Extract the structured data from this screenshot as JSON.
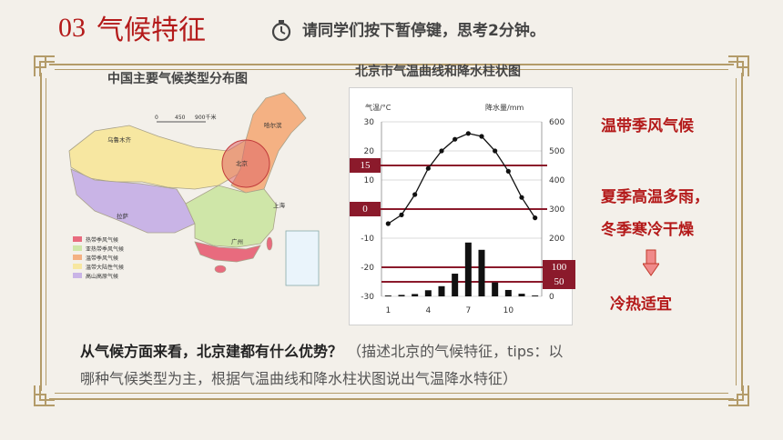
{
  "header": {
    "section_number": "03",
    "section_title": "气候特征",
    "timer_icon": "stopwatch-icon",
    "instruction": "请同学们按下暂停键，思考2分钟。"
  },
  "map": {
    "title": "中国主要气候类型分布图",
    "scale_labels": [
      "0",
      "450",
      "900千米"
    ],
    "city_labels": [
      "乌鲁木齐",
      "哈尔滨",
      "北京",
      "拉萨",
      "上海",
      "广州"
    ],
    "highlight_label": "北京",
    "legend": [
      {
        "label": "热带季风气候",
        "color": "#e86b7e"
      },
      {
        "label": "亚热带季风气候",
        "color": "#cfe6a8"
      },
      {
        "label": "温带季风气候",
        "color": "#f4b183"
      },
      {
        "label": "温带大陆性气候",
        "color": "#f7e7a1"
      },
      {
        "label": "高山高原气候",
        "color": "#c9b4e6"
      }
    ]
  },
  "chart": {
    "title": "北京市气温曲线和降水柱状图",
    "ylabel_left": "气温/°C",
    "ylabel_right": "降水量/mm",
    "left_ticks": [
      "30",
      "20",
      "10",
      "0",
      "-10",
      "-20",
      "-30"
    ],
    "right_ticks": [
      "600",
      "500",
      "400",
      "300",
      "200",
      "100",
      "0"
    ],
    "x_ticks": [
      "1",
      "4",
      "7",
      "10"
    ],
    "markers": [
      "15",
      "0",
      "100",
      "50"
    ]
  },
  "chart_data": {
    "type": "line+bar",
    "title": "北京市气温曲线和降水柱状图",
    "ylabel_left": "气温/°C",
    "ylabel_right": "降水量/mm",
    "x": [
      1,
      2,
      3,
      4,
      5,
      6,
      7,
      8,
      9,
      10,
      11,
      12
    ],
    "x_ticks": [
      1,
      4,
      7,
      10
    ],
    "temperature": [
      -5,
      -2,
      5,
      14,
      20,
      24,
      26,
      25,
      20,
      13,
      4,
      -3
    ],
    "precipitation": [
      3,
      5,
      8,
      21,
      35,
      78,
      185,
      160,
      48,
      22,
      9,
      3
    ],
    "ylim_left": [
      -30,
      30
    ],
    "ylim_right": [
      0,
      600
    ],
    "reference_lines_temperature": [
      15,
      0
    ],
    "reference_lines_precipitation": [
      100,
      50
    ],
    "grid": true
  },
  "sidebar": {
    "climate_type": "温带季风气候",
    "feature_line1": "夏季高温多雨，",
    "feature_line2": "冬季寒冷干燥",
    "arrow_icon": "arrow-down-icon",
    "conclusion": "冷热适宜"
  },
  "question": {
    "bold": "从气候方面来看，北京建都有什么优势？",
    "hint_line1": "（描述北京的气候特征，tips：以",
    "hint_line2": "哪种气候类型为主，根据气温曲线和降水柱状图说出气温降水特征）"
  }
}
